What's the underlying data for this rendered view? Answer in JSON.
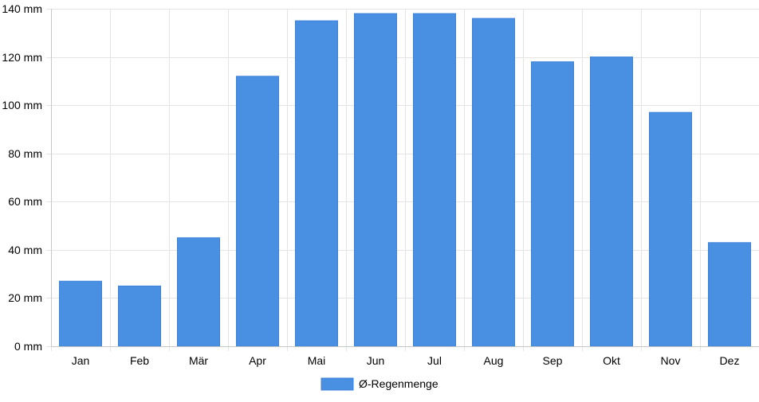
{
  "chart_data": {
    "type": "bar",
    "categories": [
      "Jan",
      "Feb",
      "Mär",
      "Apr",
      "Mai",
      "Jun",
      "Jul",
      "Aug",
      "Sep",
      "Okt",
      "Nov",
      "Dez"
    ],
    "series": [
      {
        "name": "Ø-Regenmenge",
        "color": "#4a90e2",
        "values": [
          27,
          25,
          45,
          112,
          135,
          138,
          138,
          136,
          118,
          120,
          97,
          43
        ]
      }
    ],
    "y_tick_labels": [
      "0 mm",
      "20 mm",
      "40 mm",
      "60 mm",
      "80 mm",
      "100 mm",
      "120 mm",
      "140 mm"
    ],
    "y_ticks": [
      0,
      20,
      40,
      60,
      80,
      100,
      120,
      140
    ],
    "ylim": [
      0,
      140
    ],
    "unit": "mm",
    "grid": true,
    "legend_position": "bottom-center"
  }
}
